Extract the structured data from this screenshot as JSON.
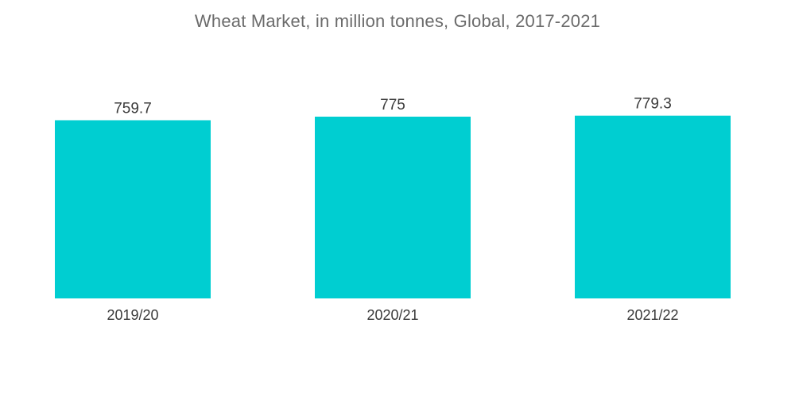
{
  "chart_data": {
    "type": "bar",
    "title": "Wheat Market, in million tonnes, Global, 2017-2021",
    "categories": [
      "2019/20",
      "2020/21",
      "2021/22"
    ],
    "values": [
      759.7,
      775,
      779.3
    ],
    "value_labels": [
      "759.7",
      "775",
      "779.3"
    ],
    "xlabel": "",
    "ylabel": "",
    "grid": false,
    "legend": "none",
    "bar_color": "#00ced1"
  }
}
